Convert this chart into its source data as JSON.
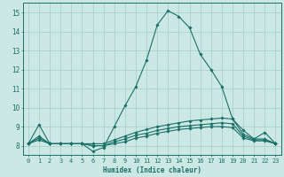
{
  "xlabel": "Humidex (Indice chaleur)",
  "ylabel": "",
  "background_color": "#cce8e4",
  "grid_color": "#aacfcc",
  "line_color": "#1a7068",
  "xlim": [
    -0.5,
    23.5
  ],
  "ylim": [
    7.5,
    15.5
  ],
  "yticks": [
    8,
    9,
    10,
    11,
    12,
    13,
    14,
    15
  ],
  "xticks": [
    0,
    1,
    2,
    3,
    4,
    5,
    6,
    7,
    8,
    9,
    10,
    11,
    12,
    13,
    14,
    15,
    16,
    17,
    18,
    19,
    20,
    21,
    22,
    23
  ],
  "series": [
    [
      8.1,
      9.1,
      8.1,
      8.1,
      8.1,
      8.1,
      7.7,
      7.9,
      9.0,
      10.1,
      11.1,
      12.5,
      14.35,
      15.1,
      14.8,
      14.2,
      12.8,
      12.0,
      11.1,
      9.4,
      8.8,
      8.35,
      8.7,
      8.1
    ],
    [
      8.1,
      8.5,
      8.1,
      8.1,
      8.1,
      8.1,
      8.1,
      8.1,
      8.3,
      8.5,
      8.7,
      8.85,
      9.0,
      9.1,
      9.2,
      9.3,
      9.35,
      9.4,
      9.45,
      9.4,
      8.6,
      8.35,
      8.35,
      8.1
    ],
    [
      8.1,
      8.4,
      8.1,
      8.1,
      8.1,
      8.1,
      8.0,
      8.0,
      8.2,
      8.35,
      8.55,
      8.65,
      8.8,
      8.9,
      9.0,
      9.05,
      9.1,
      9.15,
      9.2,
      9.15,
      8.5,
      8.3,
      8.3,
      8.1
    ],
    [
      8.1,
      8.3,
      8.1,
      8.1,
      8.1,
      8.1,
      8.0,
      8.0,
      8.1,
      8.2,
      8.4,
      8.5,
      8.65,
      8.75,
      8.85,
      8.9,
      8.95,
      9.0,
      9.0,
      8.95,
      8.4,
      8.25,
      8.25,
      8.1
    ]
  ]
}
